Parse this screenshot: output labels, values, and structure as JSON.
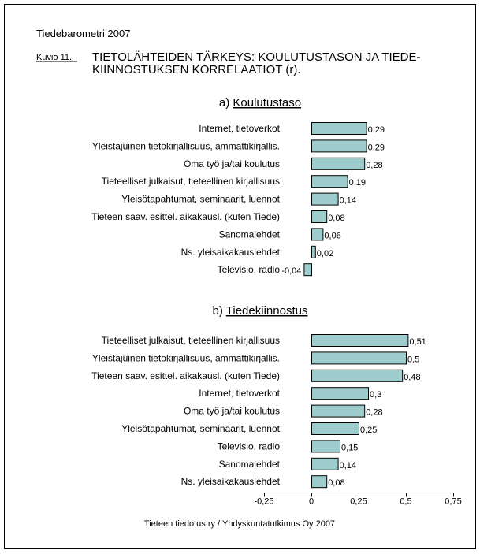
{
  "header": {
    "survey": "Tiedebarometri 2007",
    "figure_label": "Kuvio 11.",
    "title_line1": "TIETOLÄHTEIDEN TÄRKEYS: KOULUTUSTASON JA TIEDE-",
    "title_line2": "KIINNOSTUKSEN KORRELAATIOT (r)."
  },
  "footer": {
    "source": "Tieteen tiedotus ry / Yhdyskuntatutkimus Oy 2007"
  },
  "colors": {
    "bar": "#9ecccc",
    "stroke": "#000000"
  },
  "chart_data": [
    {
      "type": "bar",
      "orientation": "horizontal",
      "panel_prefix": "a)",
      "title": "Koulutustaso",
      "categories": [
        "Internet, tietoverkot",
        "Yleistajuinen tietokirjallisuus, ammattikirjallis.",
        "Oma työ ja/tai koulutus",
        "Tieteelliset julkaisut, tieteellinen kirjallisuus",
        "Yleisötapahtumat, seminaarit, luennot",
        "Tieteen saav. esittel. aikakausl. (kuten Tiede)",
        "Sanomalehdet",
        "Ns. yleisaikakauslehdet",
        "Televisio, radio"
      ],
      "values": [
        0.29,
        0.29,
        0.28,
        0.19,
        0.14,
        0.08,
        0.06,
        0.02,
        -0.04
      ],
      "value_labels": [
        "0,29",
        "0,29",
        "0,28",
        "0,19",
        "0,14",
        "0,08",
        "0,06",
        "0,02",
        "-0,04"
      ],
      "xlim": [
        -0.25,
        0.75
      ]
    },
    {
      "type": "bar",
      "orientation": "horizontal",
      "panel_prefix": "b)",
      "title": "Tiedekiinnostus",
      "categories": [
        "Tieteelliset julkaisut, tieteellinen kirjallisuus",
        "Yleistajuinen tietokirjallisuus, ammattikirjallis.",
        "Tieteen saav. esittel. aikakausl. (kuten Tiede)",
        "Internet, tietoverkot",
        "Oma työ ja/tai koulutus",
        "Yleisötapahtumat, seminaarit, luennot",
        "Televisio, radio",
        "Sanomalehdet",
        "Ns. yleisaikakauslehdet"
      ],
      "values": [
        0.51,
        0.5,
        0.48,
        0.3,
        0.28,
        0.25,
        0.15,
        0.14,
        0.08
      ],
      "value_labels": [
        "0,51",
        "0,5",
        "0,48",
        "0,3",
        "0,28",
        "0,25",
        "0,15",
        "0,14",
        "0,08"
      ],
      "xlim": [
        -0.25,
        0.75
      ],
      "xticks": [
        -0.25,
        0,
        0.25,
        0.5,
        0.75
      ],
      "xtick_labels": [
        "-0,25",
        "0",
        "0,25",
        "0,5",
        "0,75"
      ]
    }
  ]
}
